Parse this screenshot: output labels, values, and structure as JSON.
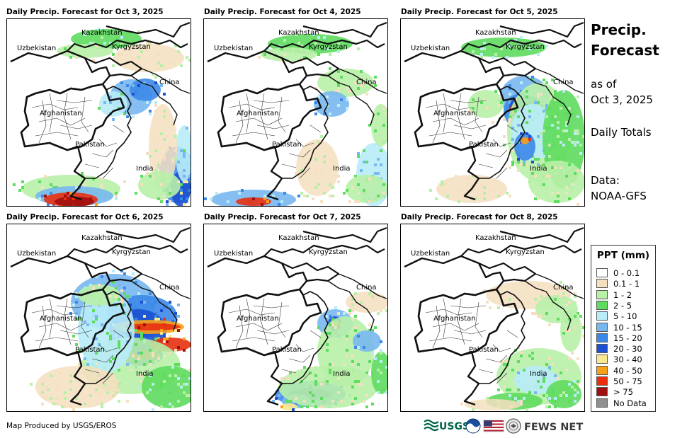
{
  "panels": [
    {
      "title": "Daily Precip. Forecast for Oct 3, 2025"
    },
    {
      "title": "Daily Precip. Forecast for Oct 4, 2025"
    },
    {
      "title": "Daily Precip. Forecast for Oct 5, 2025"
    },
    {
      "title": "Daily Precip. Forecast for Oct 6, 2025"
    },
    {
      "title": "Daily Precip. Forecast for Oct 7, 2025"
    },
    {
      "title": "Daily Precip. Forecast for Oct 8, 2025"
    }
  ],
  "map_labels": {
    "kazakhstan": "Kazakhstan",
    "uzbekistan": "Uzbekistan",
    "kyrgyzstan": "Kyrgyzstan",
    "china": "China",
    "afghanistan": "Afghanistan",
    "pakistan": "Pakistan",
    "india": "India"
  },
  "side": {
    "title_line1": "Precip.",
    "title_line2": "Forecast",
    "asof_line1": "as of",
    "asof_line2": "Oct 3, 2025",
    "daily": "Daily Totals",
    "data_line1": "Data:",
    "data_line2": "NOAA-GFS"
  },
  "legend": {
    "title": "PPT (mm)",
    "items": [
      {
        "label": "0 - 0.1",
        "color": "#ffffff"
      },
      {
        "label": "0.1 - 1",
        "color": "#f5dfc0"
      },
      {
        "label": "1 - 2",
        "color": "#b8f0a8"
      },
      {
        "label": "2 - 5",
        "color": "#5edc5e"
      },
      {
        "label": "5 - 10",
        "color": "#b8ecf8"
      },
      {
        "label": "10 - 15",
        "color": "#78b8f0"
      },
      {
        "label": "15 - 20",
        "color": "#3c88e8"
      },
      {
        "label": "20 - 30",
        "color": "#1c50d0"
      },
      {
        "label": "30 - 40",
        "color": "#f8e890"
      },
      {
        "label": "40 - 50",
        "color": "#f8a018"
      },
      {
        "label": "50 - 75",
        "color": "#e83010"
      },
      {
        "label": "> 75",
        "color": "#a01010"
      },
      {
        "label": "No Data",
        "color": "#909090"
      }
    ]
  },
  "credit": "Map Produced by USGS/EROS",
  "logos": {
    "usgs": "USGS",
    "fews": "FEWS NET"
  }
}
